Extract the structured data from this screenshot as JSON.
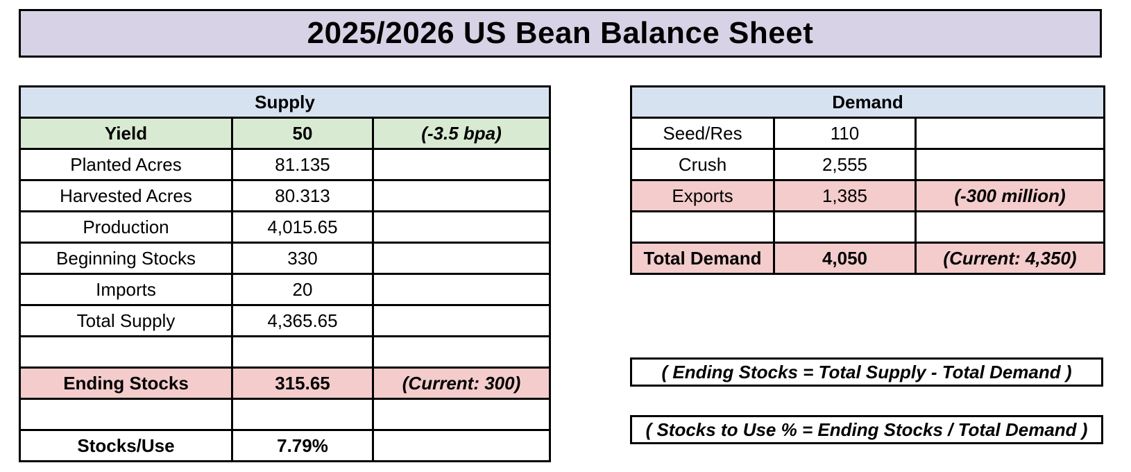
{
  "title": "2025/2026 US Bean Balance Sheet",
  "supply": {
    "header": "Supply",
    "rows": [
      {
        "label": "Yield",
        "value": "50",
        "note": "(-3.5 bpa)"
      },
      {
        "label": "Planted Acres",
        "value": "81.135",
        "note": ""
      },
      {
        "label": "Harvested Acres",
        "value": "80.313",
        "note": ""
      },
      {
        "label": "Production",
        "value": "4,015.65",
        "note": ""
      },
      {
        "label": "Beginning Stocks",
        "value": "330",
        "note": ""
      },
      {
        "label": "Imports",
        "value": "20",
        "note": ""
      },
      {
        "label": "Total Supply",
        "value": "4,365.65",
        "note": ""
      },
      {
        "label": "",
        "value": "",
        "note": ""
      },
      {
        "label": "Ending Stocks",
        "value": "315.65",
        "note": "(Current: 300)"
      },
      {
        "label": "",
        "value": "",
        "note": ""
      },
      {
        "label": "Stocks/Use",
        "value": "7.79%",
        "note": ""
      }
    ]
  },
  "demand": {
    "header": "Demand",
    "rows": [
      {
        "label": "Seed/Res",
        "value": "110",
        "note": ""
      },
      {
        "label": "Crush",
        "value": "2,555",
        "note": ""
      },
      {
        "label": "Exports",
        "value": "1,385",
        "note": "(-300 million)"
      },
      {
        "label": "",
        "value": "",
        "note": ""
      },
      {
        "label": "Total Demand",
        "value": "4,050",
        "note": "(Current: 4,350)"
      }
    ]
  },
  "formulas": [
    "( Ending Stocks = Total Supply - Total Demand )",
    "( Stocks to Use % = Ending Stocks / Total Demand )"
  ],
  "colors": {
    "title_bg": "#d7d2e5",
    "table_header_bg": "#d7e2f1",
    "yield_row_bg": "#d9ead3",
    "highlight_row_bg": "#f4cccc",
    "border": "#000000",
    "text": "#000000",
    "page_bg": "#ffffff"
  }
}
